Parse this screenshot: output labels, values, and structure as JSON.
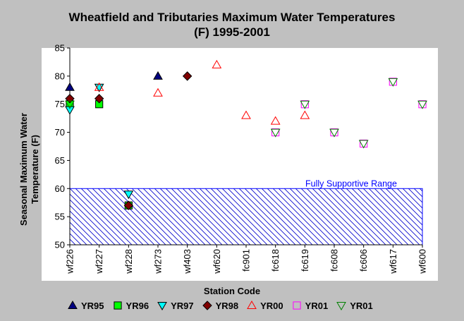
{
  "chart_data": {
    "type": "scatter",
    "title_lines": [
      "Wheatfield and Tributaries Maximum Water Temperatures",
      "(F) 1995-2001"
    ],
    "ylabel_lines": [
      "Seasonal Maximum Water",
      "Temperature  (F)"
    ],
    "xlabel": "Station Code",
    "categories": [
      "wf226",
      "wf227",
      "wf228",
      "wf273",
      "wf403",
      "wf620",
      "fc901",
      "fc618",
      "fc619",
      "fc608",
      "fc606",
      "wf617",
      "wf600"
    ],
    "ylim": [
      50,
      85
    ],
    "yticks": [
      50,
      55,
      60,
      65,
      70,
      75,
      80,
      85
    ],
    "grid": false,
    "legend_position": "bottom",
    "band": {
      "label": "Fully Supportive Range",
      "from": 50,
      "to": 60,
      "color": "#0000ff"
    },
    "series": [
      {
        "name": "YR95",
        "marker": "triangle-up",
        "fill": "#000080",
        "stroke": "#000000",
        "points": [
          [
            "wf226",
            78
          ],
          [
            "wf273",
            80
          ]
        ]
      },
      {
        "name": "YR96",
        "marker": "square",
        "fill": "#00ff00",
        "stroke": "#000000",
        "points": [
          [
            "wf226",
            75
          ],
          [
            "wf227",
            75
          ],
          [
            "wf228",
            57
          ]
        ]
      },
      {
        "name": "YR97",
        "marker": "triangle-down",
        "fill": "#00ffff",
        "stroke": "#000000",
        "points": [
          [
            "wf226",
            74
          ],
          [
            "wf227",
            78
          ],
          [
            "wf228",
            59
          ]
        ]
      },
      {
        "name": "YR98",
        "marker": "diamond",
        "fill": "#800000",
        "stroke": "#000000",
        "points": [
          [
            "wf226",
            76
          ],
          [
            "wf227",
            76
          ],
          [
            "wf228",
            57
          ],
          [
            "wf403",
            80
          ]
        ]
      },
      {
        "name": "YR00",
        "marker": "triangle-up-open",
        "fill": "none",
        "stroke": "#ff0000",
        "points": [
          [
            "wf227",
            78
          ],
          [
            "wf273",
            77
          ],
          [
            "wf620",
            82
          ],
          [
            "fc901",
            73
          ],
          [
            "fc618",
            72
          ],
          [
            "fc619",
            73
          ]
        ]
      },
      {
        "name": "YR01",
        "marker": "square-open",
        "fill": "none",
        "stroke": "#ff00ff",
        "points": [
          [
            "fc618",
            70
          ],
          [
            "fc619",
            75
          ],
          [
            "fc608",
            70
          ],
          [
            "fc606",
            68
          ],
          [
            "wf617",
            79
          ],
          [
            "wf600",
            75
          ]
        ]
      },
      {
        "name": "YR01",
        "marker": "triangle-down-open",
        "fill": "none",
        "stroke": "#008000",
        "points": [
          [
            "wf226",
            75
          ],
          [
            "fc618",
            70
          ],
          [
            "fc619",
            75
          ],
          [
            "fc608",
            70
          ],
          [
            "fc606",
            68
          ],
          [
            "wf617",
            79
          ],
          [
            "wf600",
            75
          ]
        ]
      }
    ]
  }
}
